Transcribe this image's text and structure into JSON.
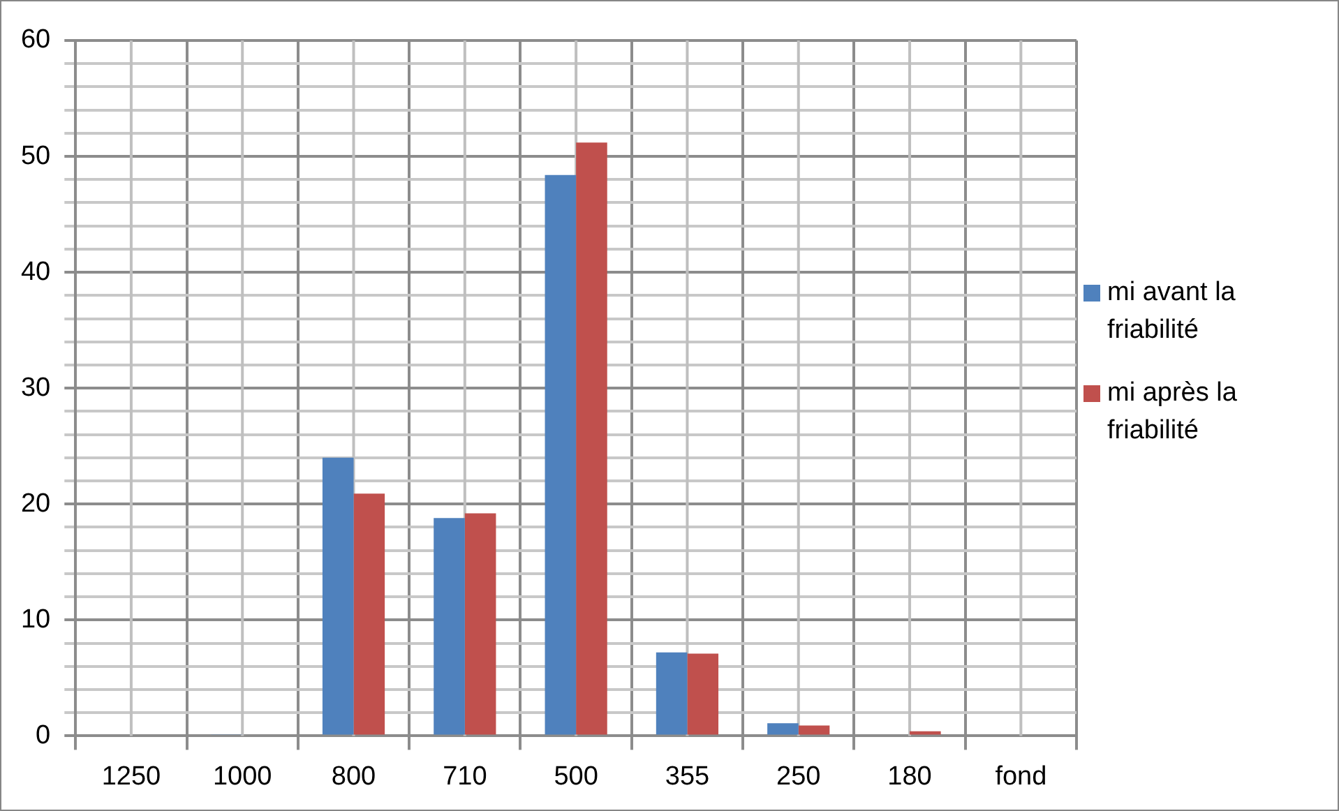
{
  "chart_data": {
    "type": "bar",
    "categories": [
      "1250",
      "1000",
      "800",
      "710",
      "500",
      "355",
      "250",
      "180",
      "fond"
    ],
    "series": [
      {
        "name": "mi avant la friabilité",
        "color": "#4f81bd",
        "values": [
          0,
          0.1,
          24,
          18.8,
          48.4,
          7.2,
          1.1,
          0,
          0
        ]
      },
      {
        "name": "mi après la friabilité",
        "color": "#c0504d",
        "values": [
          0,
          0,
          20.9,
          19.2,
          51.2,
          7.1,
          0.9,
          0.4,
          0
        ]
      }
    ],
    "ylim": [
      0,
      60
    ],
    "yticks": [
      0,
      {
        "value": 2,
        "label": null
      },
      {
        "value": 4,
        "label": null
      },
      {
        "value": 6,
        "label": null
      },
      {
        "value": 8,
        "label": null
      },
      10,
      {
        "value": 12,
        "label": null
      },
      {
        "value": 14,
        "label": null
      },
      {
        "value": 16,
        "label": null
      },
      {
        "value": 18,
        "label": null
      },
      20,
      {
        "value": 22,
        "label": null
      },
      {
        "value": 24,
        "label": null
      },
      {
        "value": 26,
        "label": null
      },
      {
        "value": 28,
        "label": null
      },
      30,
      {
        "value": 32,
        "label": null
      },
      {
        "value": 34,
        "label": null
      },
      {
        "value": 36,
        "label": null
      },
      {
        "value": 38,
        "label": null
      },
      40,
      {
        "value": 42,
        "label": null
      },
      {
        "value": 44,
        "label": null
      },
      {
        "value": 46,
        "label": null
      },
      {
        "value": 48,
        "label": null
      },
      50,
      {
        "value": 52,
        "label": null
      },
      {
        "value": 54,
        "label": null
      },
      {
        "value": 56,
        "label": null
      },
      {
        "value": 58,
        "label": null
      },
      60
    ],
    "grid": true,
    "legend": "right"
  }
}
